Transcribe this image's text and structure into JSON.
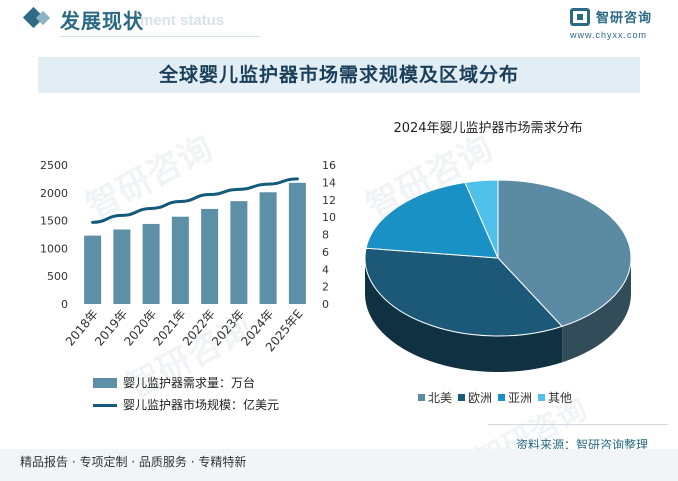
{
  "header": {
    "section_title": "发展现状",
    "section_ghost": "ment status",
    "logo_name": "智研咨询",
    "logo_url": "www.chyxx.com"
  },
  "main_title": "全球婴儿监护器市场需求规模及区域分布",
  "chart_data": [
    {
      "type": "bar",
      "categories": [
        "2018年",
        "2019年",
        "2020年",
        "2021年",
        "2022年",
        "2023年",
        "2024年",
        "2025年E"
      ],
      "series": [
        {
          "name": "婴儿监护器需求量：万台",
          "type": "bar",
          "axis": "left",
          "values": [
            1230,
            1340,
            1440,
            1570,
            1710,
            1850,
            2010,
            2180
          ]
        },
        {
          "name": "婴儿监护器市场规模：亿美元",
          "type": "line",
          "axis": "right",
          "values": [
            9.4,
            10.2,
            11.0,
            11.8,
            12.6,
            13.2,
            13.8,
            14.4
          ]
        }
      ],
      "ylim": [
        0,
        2500
      ],
      "yticks": [
        "0",
        "500",
        "1000",
        "1500",
        "2000",
        "2500"
      ],
      "y2lim": [
        0,
        16
      ],
      "y2ticks": [
        "0",
        "2",
        "4",
        "6",
        "8",
        "10",
        "12",
        "14",
        "16"
      ],
      "colors": {
        "bar": "#5d8fa6",
        "line": "#145a7a"
      }
    },
    {
      "type": "pie",
      "title": "2024年婴儿监护器市场需求分布",
      "labels": [
        "北美",
        "欧洲",
        "亚洲",
        "其他"
      ],
      "values": [
        42,
        35,
        19,
        4
      ],
      "colors": [
        "#5b8ba3",
        "#1c5978",
        "#1a91c4",
        "#4fc1eb"
      ]
    }
  ],
  "source": "资料来源：智研咨询整理",
  "footer": "精品报告 · 专项定制 · 品质服务 · 专精特新",
  "watermark_text": "智研咨询"
}
